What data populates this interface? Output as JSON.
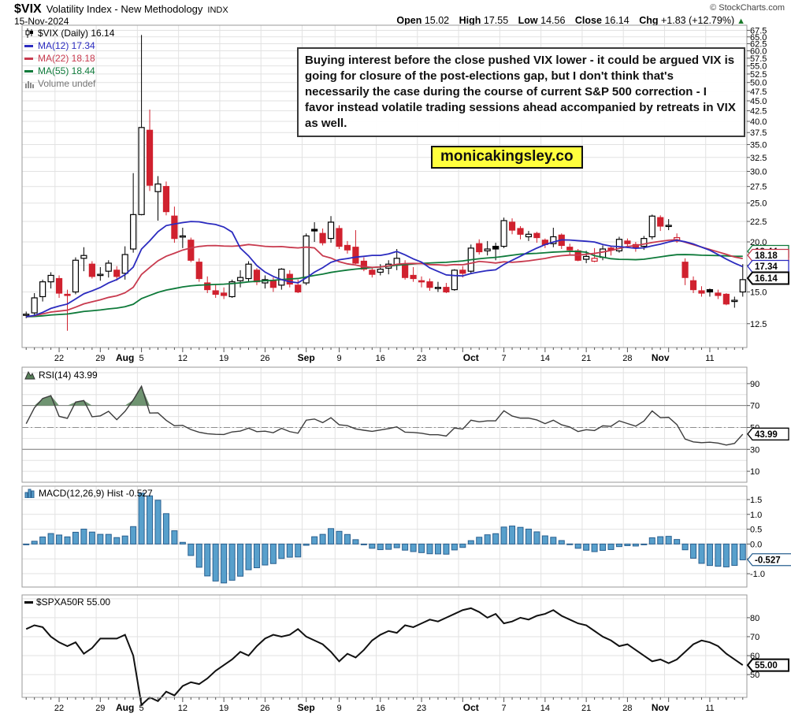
{
  "header": {
    "symbol": "$VIX",
    "title": "Volatility Index - New Methodology",
    "exchange": "INDX",
    "credit": "© StockCharts.com",
    "date": "15-Nov-2024",
    "quote": {
      "open_label": "Open",
      "open": "15.02",
      "high_label": "High",
      "high": "17.55",
      "low_label": "Low",
      "low": "14.56",
      "close_label": "Close",
      "close": "16.14",
      "chg_label": "Chg",
      "chg": "+1.83 (+12.79%)",
      "direction": "▲"
    }
  },
  "annotation": {
    "text": "Buying interest before the close pushed VIX lower - it could be argued VIX is going for closure of the post-elections gap, but I don't think that's necessarily the case during the course of current S&P 500 correction - I favor instead volatile trading sessions ahead accompanied by retreats in VIX as well."
  },
  "watermark": {
    "text": "monicakingsley.co"
  },
  "legends": {
    "main": {
      "price": "$VIX (Daily) 16.14",
      "ma12": "MA(12) 17.34",
      "ma22": "MA(22) 18.18",
      "ma55": "MA(55) 18.44",
      "volume": "Volume undef"
    },
    "rsi": "RSI(14) 43.99",
    "macd": "MACD(12,26,9) Hist -0.527",
    "spx": "$SPXA50R 55.00"
  },
  "colors": {
    "candle_down": "#d0212e",
    "candle_up": "#000000",
    "ma12": "#2b2bbf",
    "ma22": "#c83a4e",
    "ma55": "#0e7a3a",
    "macd_bar_fill": "#58a0cc",
    "macd_bar_stroke": "#2a6090",
    "rsi_fill": "#6f9471",
    "grid": "#e2e2e2",
    "panel_border": "#9a9a9a",
    "watermark_bg": "#ffff3d"
  },
  "chart_data": [
    {
      "type": "candlestick",
      "title": "$VIX (Daily)",
      "scale": "log",
      "ylim": [
        10.9,
        69.5
      ],
      "yticks": [
        12.5,
        15.0,
        17.5,
        20.0,
        22.5,
        25.0,
        27.5,
        30.0,
        32.5,
        35.0,
        37.5,
        40.0,
        42.5,
        45.0,
        47.5,
        50.0,
        52.5,
        55.0,
        57.5,
        60.0,
        62.5,
        65.0,
        67.5
      ],
      "callouts": [
        {
          "value": 18.44,
          "label": "18.44",
          "color": "#0e7a3a",
          "bold": false,
          "y": 319
        },
        {
          "value": 18.18,
          "label": "18.18",
          "color": "#c83a4e",
          "bold": false,
          "y": 324
        },
        {
          "value": 17.34,
          "label": "17.34",
          "color": "#2b2bbf",
          "bold": false,
          "y": 338
        },
        {
          "value": 16.14,
          "label": "16.14",
          "color": "#000000",
          "bold": true,
          "y": 353
        }
      ],
      "overlays": [
        {
          "name": "MA(12)",
          "period": 12,
          "value": 17.34,
          "color": "#2b2bbf"
        },
        {
          "name": "MA(22)",
          "period": 22,
          "value": 18.18,
          "color": "#c83a4e"
        },
        {
          "name": "MA(55)",
          "period": 55,
          "value": 18.44,
          "color": "#0e7a3a"
        }
      ],
      "ohlc": [
        [
          13.2,
          13.4,
          12.9,
          13.2
        ],
        [
          13.3,
          14.9,
          13.1,
          14.5
        ],
        [
          14.6,
          16.1,
          14.2,
          15.9
        ],
        [
          15.9,
          16.8,
          15.3,
          16.5
        ],
        [
          16.2,
          16.5,
          14.5,
          14.9
        ],
        [
          14.8,
          15.2,
          12.0,
          14.7
        ],
        [
          15.0,
          18.3,
          14.8,
          18.0
        ],
        [
          18.2,
          19.4,
          16.9,
          18.5
        ],
        [
          17.6,
          17.9,
          16.2,
          16.4
        ],
        [
          16.6,
          17.3,
          16.0,
          16.6
        ],
        [
          16.9,
          18.0,
          16.3,
          17.7
        ],
        [
          17.0,
          17.4,
          16.0,
          16.4
        ],
        [
          16.7,
          19.5,
          16.1,
          18.6
        ],
        [
          19.2,
          29.7,
          18.8,
          23.4
        ],
        [
          23.4,
          65.7,
          23.3,
          38.6
        ],
        [
          38.0,
          42.8,
          26.8,
          27.7
        ],
        [
          26.7,
          29.2,
          22.6,
          27.9
        ],
        [
          27.5,
          28.3,
          23.3,
          23.8
        ],
        [
          23.2,
          24.5,
          19.9,
          20.4
        ],
        [
          20.6,
          21.7,
          19.3,
          20.7
        ],
        [
          20.2,
          20.5,
          17.8,
          18.0
        ],
        [
          17.8,
          18.2,
          15.9,
          16.2
        ],
        [
          15.8,
          16.4,
          14.9,
          15.2
        ],
        [
          15.1,
          15.7,
          14.5,
          14.8
        ],
        [
          14.9,
          15.4,
          14.4,
          14.7
        ],
        [
          14.6,
          16.1,
          14.5,
          15.9
        ],
        [
          16.0,
          17.0,
          15.4,
          16.3
        ],
        [
          16.2,
          17.9,
          15.9,
          17.6
        ],
        [
          17.0,
          17.2,
          15.6,
          15.9
        ],
        [
          15.8,
          16.5,
          15.3,
          16.1
        ],
        [
          16.0,
          16.3,
          15.0,
          15.4
        ],
        [
          15.6,
          17.2,
          15.2,
          17.1
        ],
        [
          16.6,
          17.0,
          15.4,
          15.7
        ],
        [
          15.6,
          16.1,
          14.9,
          15.0
        ],
        [
          15.8,
          21.0,
          15.6,
          20.7
        ],
        [
          21.5,
          22.4,
          20.0,
          21.3
        ],
        [
          21.0,
          21.6,
          19.6,
          19.9
        ],
        [
          20.4,
          23.2,
          19.9,
          22.4
        ],
        [
          21.6,
          22.0,
          19.2,
          19.5
        ],
        [
          19.6,
          20.1,
          18.7,
          19.1
        ],
        [
          19.4,
          21.4,
          17.6,
          17.7
        ],
        [
          17.9,
          18.3,
          16.9,
          17.1
        ],
        [
          17.0,
          17.3,
          16.3,
          16.6
        ],
        [
          16.8,
          17.6,
          16.5,
          17.1
        ],
        [
          17.2,
          18.0,
          16.6,
          17.6
        ],
        [
          17.5,
          19.2,
          17.0,
          18.2
        ],
        [
          17.6,
          18.0,
          16.1,
          16.3
        ],
        [
          16.5,
          17.3,
          15.9,
          16.2
        ],
        [
          16.0,
          16.4,
          15.4,
          15.9
        ],
        [
          15.9,
          16.2,
          15.1,
          15.4
        ],
        [
          15.3,
          15.9,
          15.0,
          15.4
        ],
        [
          15.4,
          15.8,
          14.9,
          15.0
        ],
        [
          15.2,
          17.1,
          15.1,
          17.0
        ],
        [
          17.0,
          17.4,
          16.3,
          16.7
        ],
        [
          16.9,
          19.7,
          16.7,
          19.3
        ],
        [
          19.8,
          20.3,
          18.6,
          18.9
        ],
        [
          19.0,
          20.1,
          18.5,
          19.2
        ],
        [
          19.5,
          19.9,
          18.0,
          19.2
        ],
        [
          19.5,
          23.0,
          19.3,
          22.6
        ],
        [
          22.4,
          22.9,
          20.9,
          21.4
        ],
        [
          21.6,
          21.9,
          20.3,
          20.9
        ],
        [
          20.6,
          21.3,
          20.1,
          20.9
        ],
        [
          21.0,
          21.2,
          19.9,
          20.5
        ],
        [
          20.2,
          20.4,
          19.3,
          19.7
        ],
        [
          19.8,
          21.7,
          19.4,
          20.6
        ],
        [
          20.8,
          21.0,
          19.2,
          19.6
        ],
        [
          19.4,
          19.8,
          18.6,
          19.1
        ],
        [
          19.0,
          19.2,
          17.9,
          18.0
        ],
        [
          18.1,
          19.0,
          17.7,
          18.4
        ],
        [
          17.9,
          19.3,
          17.8,
          18.2
        ],
        [
          18.3,
          19.6,
          18.0,
          19.2
        ],
        [
          19.3,
          19.6,
          18.5,
          19.1
        ],
        [
          19.0,
          20.6,
          18.8,
          20.3
        ],
        [
          20.1,
          20.4,
          19.3,
          19.8
        ],
        [
          19.7,
          20.0,
          18.9,
          19.3
        ],
        [
          19.5,
          20.7,
          19.1,
          20.4
        ],
        [
          20.6,
          23.4,
          20.3,
          23.2
        ],
        [
          23.0,
          23.3,
          21.3,
          21.9
        ],
        [
          22.0,
          22.8,
          21.4,
          22.0
        ],
        [
          20.1,
          21.0,
          19.9,
          20.5
        ],
        [
          17.8,
          18.2,
          15.6,
          16.3
        ],
        [
          16.0,
          16.4,
          14.9,
          15.2
        ],
        [
          15.1,
          15.5,
          14.6,
          14.9
        ],
        [
          15.2,
          15.3,
          14.6,
          15.0
        ],
        [
          14.9,
          15.2,
          14.4,
          14.7
        ],
        [
          14.8,
          14.9,
          13.9,
          14.0
        ],
        [
          14.2,
          14.6,
          13.7,
          14.3
        ],
        [
          15.0,
          17.6,
          14.6,
          16.1
        ]
      ],
      "axis": {
        "week_gridlines": [
          4,
          9,
          14,
          19,
          24,
          29,
          34,
          38,
          43,
          48,
          53,
          58,
          63,
          68,
          73,
          78,
          83
        ],
        "week_labels": [
          {
            "i": 4,
            "t": "22"
          },
          {
            "i": 9,
            "t": "29"
          },
          {
            "i": 14,
            "t": "5"
          },
          {
            "i": 19,
            "t": "12"
          },
          {
            "i": 24,
            "t": "19"
          },
          {
            "i": 29,
            "t": "26"
          },
          {
            "i": 38,
            "t": "9"
          },
          {
            "i": 43,
            "t": "16"
          },
          {
            "i": 48,
            "t": "23"
          },
          {
            "i": 58,
            "t": "7"
          },
          {
            "i": 63,
            "t": "14"
          },
          {
            "i": 68,
            "t": "21"
          },
          {
            "i": 73,
            "t": "28"
          },
          {
            "i": 83,
            "t": "11"
          }
        ],
        "month_labels": [
          {
            "i": 12,
            "t": "Aug"
          },
          {
            "i": 34,
            "t": "Sep"
          },
          {
            "i": 54,
            "t": "Oct"
          },
          {
            "i": 77,
            "t": "Nov"
          }
        ]
      }
    },
    {
      "type": "line",
      "title": "RSI(14)",
      "value": 43.99,
      "ylim": [
        0,
        105
      ],
      "yticks": [
        10,
        30,
        50,
        70,
        90
      ],
      "overbought": 70,
      "oversold": 30,
      "midline": 50,
      "callout": {
        "label": "43.99",
        "color": "#000000",
        "bold": false
      },
      "note": "series computed from ohlc closes with Wilder RSI(14)"
    },
    {
      "type": "bar",
      "title": "MACD(12,26,9) Hist",
      "value": -0.527,
      "ylim": [
        -1.45,
        1.95
      ],
      "yticks": [
        -1.0,
        -0.5,
        0.0,
        0.5,
        1.0,
        1.5
      ],
      "callout": {
        "label": "-0.527",
        "color": "#2a6090",
        "bold": false
      },
      "note": "histogram computed from ohlc closes via EMA(12)-EMA(26) minus EMA(9) signal"
    },
    {
      "type": "line",
      "title": "$SPXA50R",
      "value": 55.0,
      "ylim": [
        38,
        92
      ],
      "yticks": [
        50,
        60,
        70,
        80
      ],
      "callout": {
        "label": "55.00",
        "color": "#000000",
        "bold": true
      },
      "values": [
        74,
        76,
        75,
        70,
        67,
        65,
        67,
        61,
        64,
        69,
        69,
        69,
        71,
        60,
        34,
        38,
        36,
        41,
        39,
        44,
        46,
        45,
        48,
        52,
        55,
        58,
        62,
        60,
        65,
        69,
        71,
        70,
        71,
        74,
        70,
        68,
        66,
        62,
        57,
        61,
        59,
        63,
        68,
        71,
        73,
        72,
        76,
        75,
        77,
        79,
        78,
        80,
        82,
        84,
        85,
        83,
        80,
        82,
        77,
        78,
        80,
        79,
        81,
        82,
        84,
        81,
        79,
        77,
        76,
        73,
        70,
        68,
        65,
        66,
        63,
        60,
        57,
        58,
        56,
        58,
        62,
        66,
        68,
        67,
        65,
        61,
        58,
        55
      ]
    }
  ]
}
